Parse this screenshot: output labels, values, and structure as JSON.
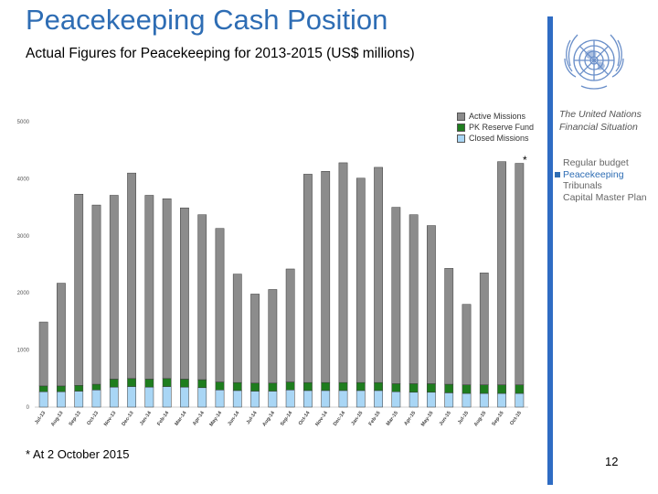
{
  "header": {
    "title": "Peacekeeping Cash Position",
    "subtitle": "Actual Figures for Peacekeeping for 2013-2015 (US$ millions)"
  },
  "sidebar": {
    "title_line1": "The United Nations",
    "title_line2": "Financial Situation",
    "items": [
      {
        "label": "Regular budget",
        "active": false
      },
      {
        "label": "Peacekeeping",
        "active": true
      },
      {
        "label": "Tribunals",
        "active": false
      },
      {
        "label": "Capital Master Plan",
        "active": false
      }
    ],
    "logo_icon": "un-emblem-icon"
  },
  "footer": {
    "footnote": "* At 2 October 2015",
    "page_number": "12"
  },
  "colors": {
    "title": "#2e6db4",
    "accent_bar": "#2f6cc3",
    "active_missions": "#8c8c8c",
    "pk_reserve_fund": "#1e7d1e",
    "closed_missions": "#a9d6f5"
  },
  "chart_data": {
    "type": "bar",
    "stacked": true,
    "title": "",
    "xlabel": "",
    "ylabel": "",
    "ylim": [
      0,
      5000
    ],
    "yticks": [
      0,
      1000,
      2000,
      3000,
      4000,
      5000
    ],
    "grid": false,
    "legend_position": "top-right",
    "annotation": "*",
    "categories": [
      "Jul-13",
      "Aug-13",
      "Sep-13",
      "Oct-13",
      "Nov-13",
      "Dec-13",
      "Jan-14",
      "Feb-14",
      "Mar-14",
      "Apr-14",
      "May-14",
      "Jun-14",
      "Jul-14",
      "Aug-14",
      "Sep-14",
      "Oct-14",
      "Nov-14",
      "Dec-14",
      "Jan-15",
      "Feb-15",
      "Mar-15",
      "Apr-15",
      "May-15",
      "Jun-15",
      "Jul-15",
      "Aug-15",
      "Sep-15",
      "Oct-15"
    ],
    "series": [
      {
        "name": "Closed Missions",
        "values": [
          270,
          270,
          280,
          300,
          350,
          360,
          350,
          360,
          350,
          340,
          300,
          290,
          280,
          280,
          300,
          290,
          290,
          290,
          290,
          290,
          270,
          260,
          260,
          250,
          240,
          240,
          240,
          240
        ]
      },
      {
        "name": "PK Reserve Fund",
        "values": [
          100,
          100,
          100,
          100,
          140,
          140,
          140,
          140,
          140,
          140,
          140,
          140,
          140,
          140,
          140,
          140,
          140,
          140,
          140,
          140,
          140,
          150,
          150,
          150,
          150,
          150,
          150,
          150
        ]
      },
      {
        "name": "Active Missions",
        "values": [
          1120,
          1800,
          3350,
          3140,
          3220,
          3600,
          3220,
          3150,
          3000,
          2890,
          2690,
          1900,
          1560,
          1640,
          1980,
          3650,
          3700,
          3850,
          3580,
          3770,
          3090,
          2960,
          2770,
          2030,
          1410,
          1960,
          3910,
          3880
        ]
      }
    ]
  }
}
